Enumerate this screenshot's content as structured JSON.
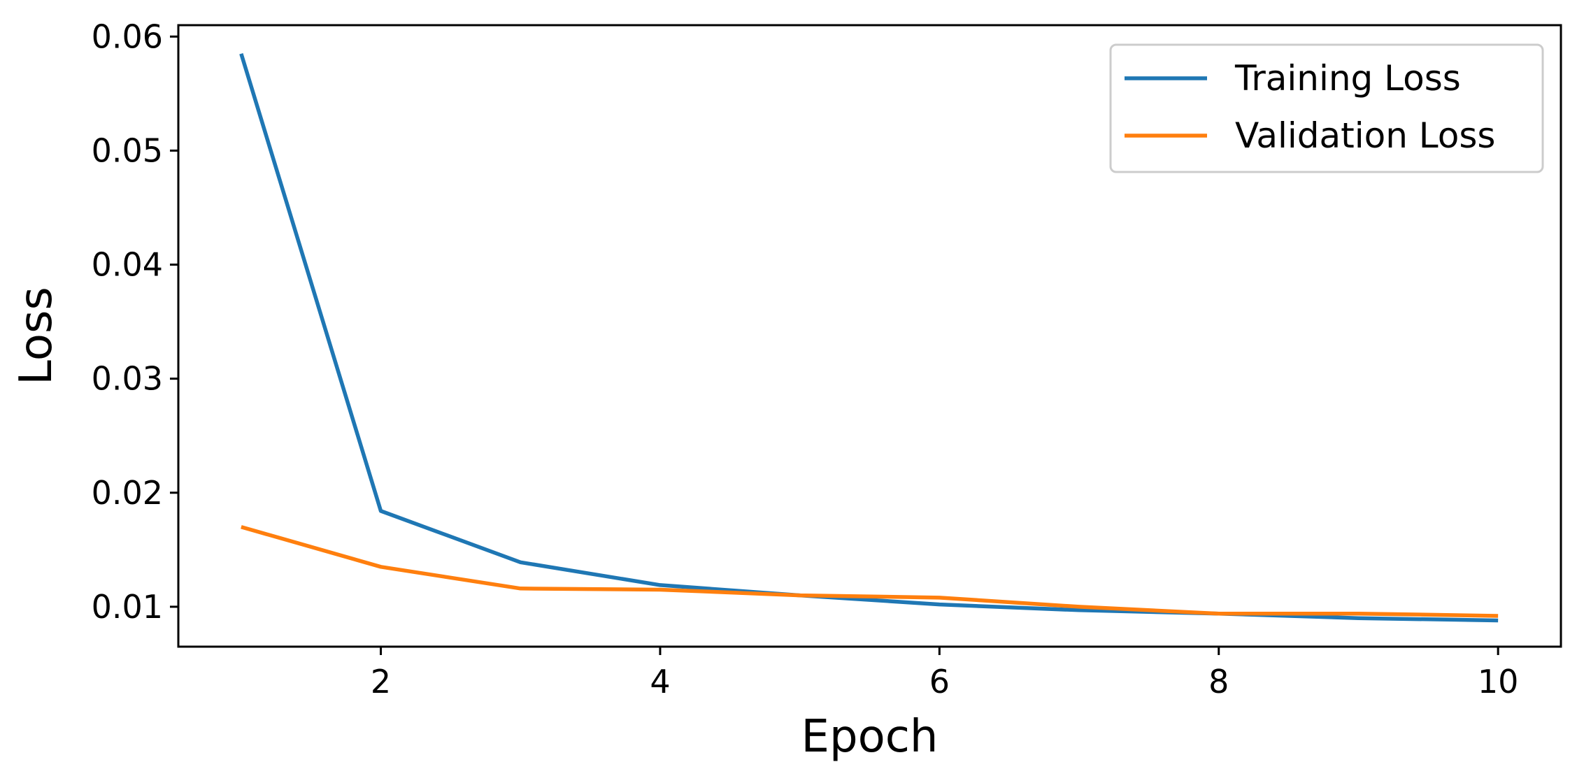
{
  "chart_data": {
    "type": "line",
    "title": "",
    "xlabel": "Epoch",
    "ylabel": "Loss",
    "xlim": [
      0.55,
      10.45
    ],
    "ylim": [
      0.0065,
      0.061
    ],
    "x_ticks": [
      2,
      4,
      6,
      8,
      10
    ],
    "y_ticks": [
      0.01,
      0.02,
      0.03,
      0.04,
      0.05,
      0.06
    ],
    "x_tick_labels": [
      "2",
      "4",
      "6",
      "8",
      "10"
    ],
    "y_tick_labels": [
      "0.01",
      "0.02",
      "0.03",
      "0.04",
      "0.05",
      "0.06"
    ],
    "grid": false,
    "legend_position": "top-right",
    "x": [
      1,
      2,
      3,
      4,
      5,
      6,
      7,
      8,
      9,
      10
    ],
    "series": [
      {
        "name": "Training Loss",
        "color": "#1f77b4",
        "values": [
          0.0585,
          0.0184,
          0.0139,
          0.0119,
          0.011,
          0.0102,
          0.0097,
          0.0094,
          0.009,
          0.0088
        ]
      },
      {
        "name": "Validation Loss",
        "color": "#ff7f0e",
        "values": [
          0.017,
          0.0135,
          0.0116,
          0.0115,
          0.011,
          0.0108,
          0.01,
          0.0094,
          0.0094,
          0.0092
        ]
      }
    ]
  }
}
